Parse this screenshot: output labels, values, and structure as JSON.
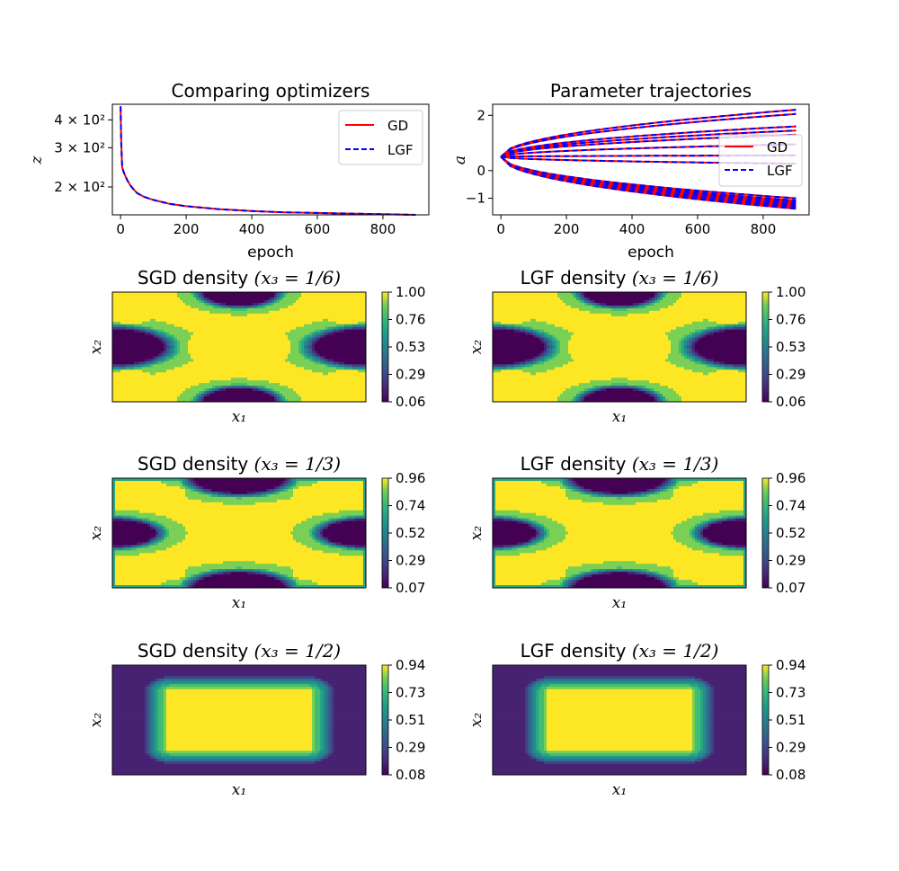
{
  "chart_data": [
    {
      "type": "line",
      "title": "Comparing optimizers",
      "xlabel": "epoch",
      "ylabel": "z",
      "yscale": "log",
      "xlim": [
        -25,
        940
      ],
      "ylim": [
        150,
        470
      ],
      "xticks": [
        0,
        200,
        400,
        600,
        800
      ],
      "yticks": [
        {
          "value": 400,
          "label": "4 × 10²"
        },
        {
          "value": 300,
          "label": "3 × 10²"
        },
        {
          "value": 200,
          "label": "2 × 10²"
        }
      ],
      "legend": "top-right",
      "series": [
        {
          "name": "GD",
          "color": "#ff0000",
          "style": "solid",
          "x": [
            0,
            2,
            5,
            10,
            20,
            30,
            40,
            50,
            70,
            100,
            150,
            200,
            300,
            400,
            500,
            600,
            700,
            800,
            900
          ],
          "y": [
            460,
            320,
            245,
            232,
            215,
            203,
            195,
            188,
            181,
            175,
            168,
            164,
            159,
            156,
            154,
            153,
            152,
            151,
            150
          ]
        },
        {
          "name": "LGF",
          "color": "#0000ff",
          "style": "dashed",
          "x": [
            0,
            2,
            5,
            10,
            20,
            30,
            40,
            50,
            70,
            100,
            150,
            200,
            300,
            400,
            500,
            600,
            700,
            800,
            900
          ],
          "y": [
            460,
            320,
            245,
            232,
            215,
            203,
            195,
            188,
            181,
            175,
            168,
            164,
            159,
            156,
            154,
            153,
            152,
            151,
            150
          ]
        }
      ]
    },
    {
      "type": "line",
      "title": "Parameter trajectories",
      "xlabel": "epoch",
      "ylabel": "a",
      "xlim": [
        -25,
        940
      ],
      "ylim": [
        -1.6,
        2.4
      ],
      "xticks": [
        0,
        200,
        400,
        600,
        800
      ],
      "yticks": [
        -1,
        0,
        2
      ],
      "legend": "right",
      "series": [
        {
          "name": "GD",
          "color": "#ff0000",
          "style": "solid"
        },
        {
          "name": "LGF",
          "color": "#0000ff",
          "style": "dashed"
        }
      ],
      "start_value": 0.5,
      "final_values": [
        2.2,
        2.05,
        1.6,
        1.45,
        1.3,
        0.95,
        0.55,
        0.25,
        -1.0,
        -1.08,
        -1.13,
        -1.18,
        -1.22,
        -1.26,
        -1.3,
        -1.34,
        -1.38
      ]
    },
    {
      "type": "heatmap",
      "title": "SGD density",
      "title_math": "(x₃ = 1/6)",
      "xlabel": "x₁",
      "ylabel": "x₂",
      "colormap": "viridis",
      "pattern": "x",
      "colorbar_ticks": [
        "1.00",
        "0.76",
        "0.53",
        "0.29",
        "0.06"
      ]
    },
    {
      "type": "heatmap",
      "title": "LGF density",
      "title_math": "(x₃ = 1/6)",
      "xlabel": "x₁",
      "ylabel": "x₂",
      "colormap": "viridis",
      "pattern": "x",
      "colorbar_ticks": [
        "1.00",
        "0.76",
        "0.53",
        "0.29",
        "0.06"
      ]
    },
    {
      "type": "heatmap",
      "title": "SGD density",
      "title_math": "(x₃ = 1/3)",
      "xlabel": "x₁",
      "ylabel": "x₂",
      "colormap": "viridis",
      "pattern": "x-wide",
      "colorbar_ticks": [
        "0.96",
        "0.74",
        "0.52",
        "0.29",
        "0.07"
      ]
    },
    {
      "type": "heatmap",
      "title": "LGF density",
      "title_math": "(x₃ = 1/3)",
      "xlabel": "x₁",
      "ylabel": "x₂",
      "colormap": "viridis",
      "pattern": "x-wide",
      "colorbar_ticks": [
        "0.96",
        "0.74",
        "0.52",
        "0.29",
        "0.07"
      ]
    },
    {
      "type": "heatmap",
      "title": "SGD density",
      "title_math": "(x₃ = 1/2)",
      "xlabel": "x₁",
      "ylabel": "x₂",
      "colormap": "viridis",
      "pattern": "rect",
      "colorbar_ticks": [
        "0.94",
        "0.73",
        "0.51",
        "0.29",
        "0.08"
      ]
    },
    {
      "type": "heatmap",
      "title": "LGF density",
      "title_math": "(x₃ = 1/2)",
      "xlabel": "x₁",
      "ylabel": "x₂",
      "colormap": "viridis",
      "pattern": "rect",
      "colorbar_ticks": [
        "0.94",
        "0.73",
        "0.51",
        "0.29",
        "0.08"
      ]
    }
  ]
}
